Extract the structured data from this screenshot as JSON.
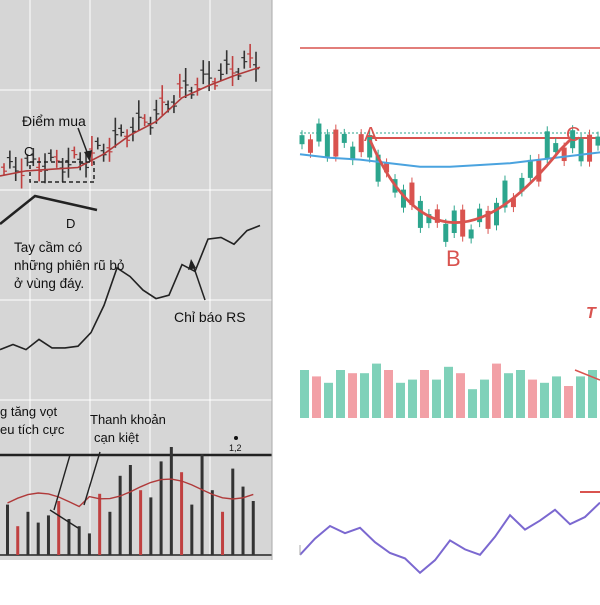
{
  "chart_data": [
    {
      "type": "line",
      "panel": "left",
      "background": "#d6d6d6",
      "annotations": {
        "buy_point": "Điểm mua",
        "point_c": "C",
        "point_d": "D",
        "handle_note_line1": "Tay cầm có",
        "handle_note_line2": "những phiên rũ bỏ",
        "handle_note_line3": "ở vùng đáy.",
        "rs_label": "Chỉ báo RS",
        "volume_note_line1": "g tăng vọt",
        "volume_note_line2": "eu tích cực",
        "liquidity_line1": "Thanh khoản",
        "liquidity_line2": "cạn kiệt",
        "volume_marker": "1,2"
      },
      "rs_series": {
        "x": [
          0,
          5,
          10,
          15,
          20,
          25,
          30,
          35,
          40,
          45,
          50,
          55,
          60,
          65,
          70,
          75,
          80,
          85,
          90,
          95,
          100
        ],
        "y": [
          12,
          15,
          12,
          18,
          13,
          13,
          14,
          22,
          38,
          60,
          55,
          47,
          42,
          44,
          62,
          58,
          77,
          78,
          74,
          82,
          85
        ]
      },
      "price_ma": {
        "x": [
          0,
          10,
          20,
          30,
          40,
          50,
          60,
          70,
          80,
          90,
          100
        ],
        "y": [
          20,
          23,
          24,
          25,
          33,
          44,
          52,
          66,
          73,
          79,
          84
        ]
      },
      "volume_bars": [
        14,
        8,
        12,
        9,
        11,
        15,
        10,
        8,
        6,
        17,
        12,
        22,
        25,
        18,
        16,
        26,
        30,
        23,
        14,
        28,
        18,
        12,
        24,
        19,
        15
      ],
      "colors": {
        "ma": "#b03a3a",
        "rs": "#222222",
        "up": "#333333",
        "down": "#c04040"
      }
    },
    {
      "type": "candlestick",
      "panel": "right",
      "annotations": {
        "point_a": "A",
        "point_b": "B",
        "point_c": "C",
        "partial_text": "T"
      },
      "ma_line": {
        "x": [
          0,
          10,
          20,
          30,
          40,
          50,
          60,
          70,
          80,
          90,
          100
        ],
        "y": [
          62,
          58,
          56,
          52,
          48,
          48,
          50,
          52,
          56,
          60,
          64
        ]
      },
      "volume_bars": [
        30,
        26,
        22,
        30,
        28,
        28,
        34,
        30,
        22,
        24,
        30,
        24,
        32,
        28,
        18,
        24,
        34,
        28,
        30,
        24,
        22,
        26,
        20,
        26,
        30
      ],
      "rsi_series": {
        "x": [
          0,
          5,
          10,
          15,
          20,
          25,
          30,
          35,
          40,
          45,
          50,
          55,
          60,
          65,
          70,
          75,
          80,
          85,
          90,
          95,
          100
        ],
        "y": [
          28,
          46,
          60,
          52,
          58,
          42,
          30,
          24,
          8,
          22,
          44,
          34,
          28,
          48,
          72,
          56,
          66,
          78,
          62,
          70,
          86
        ]
      },
      "colors": {
        "up": "#2ca58d",
        "down": "#d9534f",
        "ma": "#4aa3df",
        "resistance": "#d9534f",
        "rsi": "#7b68d0",
        "vol_up": "#7fd1b9",
        "vol_down": "#f2a0a6"
      }
    }
  ]
}
